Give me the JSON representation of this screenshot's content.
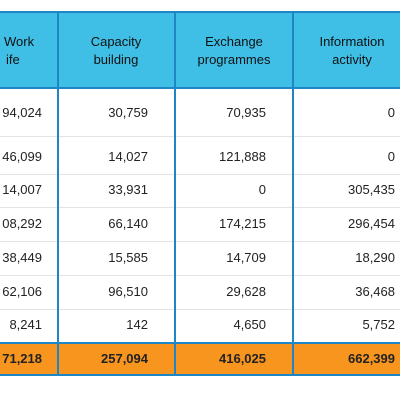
{
  "table": {
    "headers": [
      [
        "Work",
        "ife"
      ],
      [
        "Capacity",
        "building"
      ],
      [
        "Exchange",
        "programmes"
      ],
      [
        "Information",
        "activity"
      ]
    ],
    "rows": [
      [
        "94,024",
        "30,759",
        "70,935",
        "0"
      ],
      [
        "46,099",
        "14,027",
        "121,888",
        "0"
      ],
      [
        "14,007",
        "33,931",
        "0",
        "305,435"
      ],
      [
        "08,292",
        "66,140",
        "174,215",
        "296,454"
      ],
      [
        "38,449",
        "15,585",
        "14,709",
        "18,290"
      ],
      [
        "62,106",
        "96,510",
        "29,628",
        "36,468"
      ],
      [
        "8,241",
        "142",
        "4,650",
        "5,752"
      ]
    ],
    "total": [
      "71,218",
      "257,094",
      "416,025",
      "662,399"
    ]
  }
}
